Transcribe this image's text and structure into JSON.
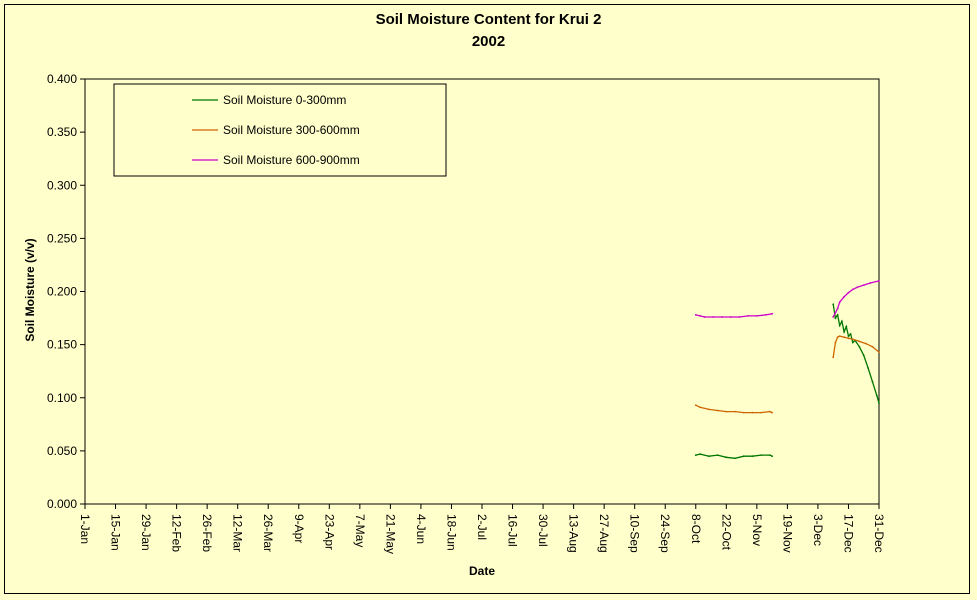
{
  "chart_data": {
    "type": "line",
    "title": "Soil Moisture Content for Krui 2",
    "subtitle": "2002",
    "xlabel": "Date",
    "ylabel": "Soil Moisture (v/v)",
    "x_is_date_axis": true,
    "x_tick_labels": [
      "1-Jan",
      "15-Jan",
      "29-Jan",
      "12-Feb",
      "26-Feb",
      "12-Mar",
      "26-Mar",
      "9-Apr",
      "23-Apr",
      "7-May",
      "21-May",
      "4-Jun",
      "18-Jun",
      "2-Jul",
      "16-Jul",
      "30-Jul",
      "13-Aug",
      "27-Aug",
      "10-Sep",
      "24-Sep",
      "8-Oct",
      "22-Oct",
      "5-Nov",
      "19-Nov",
      "3-Dec",
      "17-Dec",
      "31-Dec"
    ],
    "y_tick_labels": [
      "0.000",
      "0.050",
      "0.100",
      "0.150",
      "0.200",
      "0.250",
      "0.300",
      "0.350",
      "0.400"
    ],
    "ylim": [
      0,
      0.4
    ],
    "grid": false,
    "legend": {
      "placement": "top-left"
    },
    "colors": {
      "background": "#ffffcc"
    },
    "series": [
      {
        "name": "Soil Moisture 0-300mm",
        "color": "#007700",
        "points": [
          [
            "8-Oct",
            0.046
          ],
          [
            "10-Oct",
            0.047
          ],
          [
            "14-Oct",
            0.045
          ],
          [
            "18-Oct",
            0.046
          ],
          [
            "22-Oct",
            0.044
          ],
          [
            "26-Oct",
            0.043
          ],
          [
            "30-Oct",
            0.045
          ],
          [
            "3-Nov",
            0.045
          ],
          [
            "7-Nov",
            0.046
          ],
          [
            "11-Nov",
            0.046
          ],
          [
            "12-Nov",
            0.045
          ],
          [
            "10-Dec",
            0.188
          ],
          [
            "11-Dec",
            0.175
          ],
          [
            "12-Dec",
            0.178
          ],
          [
            "13-Dec",
            0.168
          ],
          [
            "14-Dec",
            0.172
          ],
          [
            "15-Dec",
            0.162
          ],
          [
            "16-Dec",
            0.167
          ],
          [
            "17-Dec",
            0.158
          ],
          [
            "18-Dec",
            0.16
          ],
          [
            "19-Dec",
            0.152
          ],
          [
            "20-Dec",
            0.154
          ],
          [
            "22-Dec",
            0.148
          ],
          [
            "24-Dec",
            0.14
          ],
          [
            "26-Dec",
            0.128
          ],
          [
            "28-Dec",
            0.115
          ],
          [
            "30-Dec",
            0.102
          ],
          [
            "31-Dec",
            0.095
          ]
        ]
      },
      {
        "name": "Soil Moisture 300-600mm",
        "color": "#cc6600",
        "points": [
          [
            "8-Oct",
            0.093
          ],
          [
            "10-Oct",
            0.091
          ],
          [
            "14-Oct",
            0.089
          ],
          [
            "18-Oct",
            0.088
          ],
          [
            "22-Oct",
            0.087
          ],
          [
            "26-Oct",
            0.087
          ],
          [
            "30-Oct",
            0.086
          ],
          [
            "3-Nov",
            0.086
          ],
          [
            "7-Nov",
            0.086
          ],
          [
            "11-Nov",
            0.087
          ],
          [
            "12-Nov",
            0.086
          ],
          [
            "10-Dec",
            0.138
          ],
          [
            "11-Dec",
            0.152
          ],
          [
            "12-Dec",
            0.157
          ],
          [
            "13-Dec",
            0.158
          ],
          [
            "15-Dec",
            0.157
          ],
          [
            "17-Dec",
            0.156
          ],
          [
            "19-Dec",
            0.155
          ],
          [
            "22-Dec",
            0.153
          ],
          [
            "25-Dec",
            0.151
          ],
          [
            "28-Dec",
            0.148
          ],
          [
            "31-Dec",
            0.143
          ]
        ]
      },
      {
        "name": "Soil Moisture 600-900mm",
        "color": "#cc00cc",
        "points": [
          [
            "8-Oct",
            0.178
          ],
          [
            "10-Oct",
            0.177
          ],
          [
            "12-Oct",
            0.176
          ],
          [
            "16-Oct",
            0.176
          ],
          [
            "20-Oct",
            0.176
          ],
          [
            "24-Oct",
            0.176
          ],
          [
            "28-Oct",
            0.176
          ],
          [
            "1-Nov",
            0.177
          ],
          [
            "5-Nov",
            0.177
          ],
          [
            "9-Nov",
            0.178
          ],
          [
            "12-Nov",
            0.179
          ],
          [
            "10-Dec",
            0.176
          ],
          [
            "11-Dec",
            0.18
          ],
          [
            "12-Dec",
            0.184
          ],
          [
            "13-Dec",
            0.19
          ],
          [
            "15-Dec",
            0.195
          ],
          [
            "17-Dec",
            0.199
          ],
          [
            "19-Dec",
            0.202
          ],
          [
            "21-Dec",
            0.204
          ],
          [
            "24-Dec",
            0.206
          ],
          [
            "27-Dec",
            0.208
          ],
          [
            "31-Dec",
            0.21
          ]
        ]
      }
    ]
  }
}
